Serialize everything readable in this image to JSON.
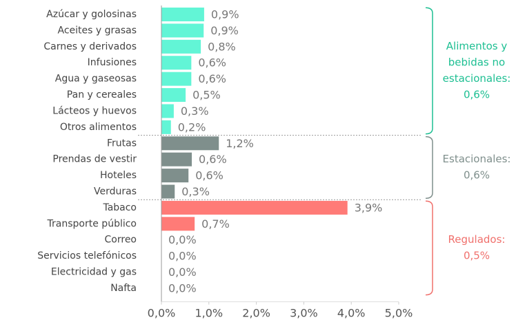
{
  "chart_data": {
    "type": "bar",
    "orientation": "horizontal",
    "xlim": [
      0,
      5
    ],
    "xticks": [
      {
        "value": 0,
        "label": "0,0%"
      },
      {
        "value": 1,
        "label": "1,0%"
      },
      {
        "value": 2,
        "label": "2,0%"
      },
      {
        "value": 3,
        "label": "3,0%"
      },
      {
        "value": 4,
        "label": "4,0%"
      },
      {
        "value": 5,
        "label": "5,0%"
      }
    ],
    "series": [
      {
        "name": [
          "Alimentos y",
          "bebidas no",
          "estacionales:",
          "0,6%"
        ],
        "color": "#62f5d6",
        "label_color": "#1dbf92",
        "categories": [
          "Azúcar y golosinas",
          "Aceites y grasas",
          "Carnes y derivados",
          "Infusiones",
          "Agua y gaseosas",
          "Pan y cereales",
          "Lácteos y huevos",
          "Otros alimentos"
        ],
        "values": [
          0.9,
          0.89,
          0.83,
          0.63,
          0.63,
          0.51,
          0.26,
          0.2
        ],
        "value_labels": [
          "0,9%",
          "0,9%",
          "0,8%",
          "0,6%",
          "0,6%",
          "0,5%",
          "0,3%",
          "0,2%"
        ]
      },
      {
        "name": [
          "Estacionales:",
          "0,6%"
        ],
        "color": "#7f8f8c",
        "label_color": "#7f8f8c",
        "categories": [
          "Frutas",
          "Prendas de vestir",
          "Hoteles",
          "Verduras"
        ],
        "values": [
          1.21,
          0.64,
          0.57,
          0.28
        ],
        "value_labels": [
          "1,2%",
          "0,6%",
          "0,6%",
          "0,3%"
        ]
      },
      {
        "name": [
          "Regulados:",
          "0,5%"
        ],
        "color": "#ff7b77",
        "label_color": "#f0706c",
        "categories": [
          "Tabaco",
          "Transporte público",
          "Correo",
          "Servicios telefónicos",
          "Electricidad y gas",
          "Nafta"
        ],
        "values": [
          3.92,
          0.7,
          0,
          0,
          0,
          0
        ],
        "value_labels": [
          "3,9%",
          "0,7%",
          "0,0%",
          "0,0%",
          "0,0%",
          "0,0%"
        ]
      }
    ]
  }
}
